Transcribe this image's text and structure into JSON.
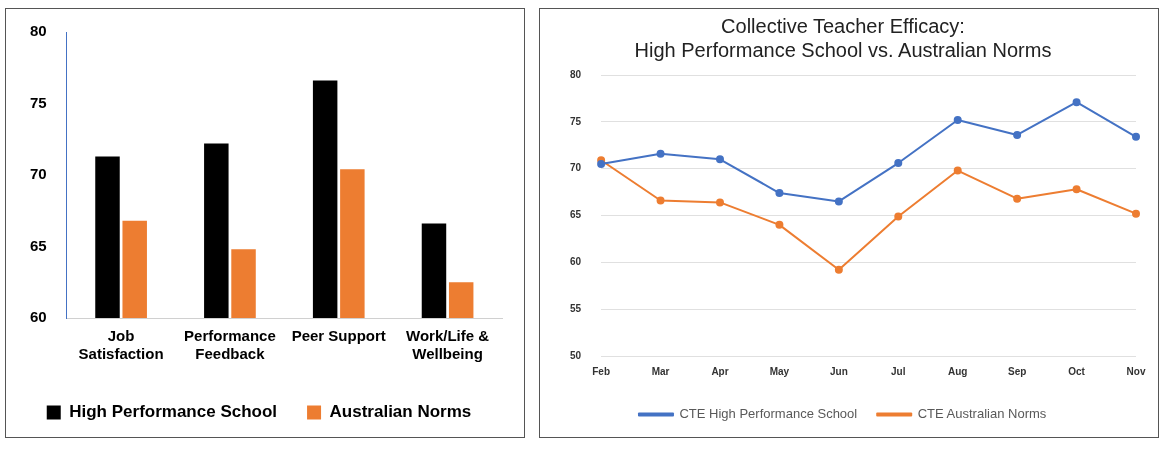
{
  "chart_data": [
    {
      "type": "bar",
      "categories": [
        "Job Satisfaction",
        "Performance Feedback",
        "Peer Support",
        "Work/Life & Wellbeing"
      ],
      "series": [
        {
          "name": "High Performance School",
          "color": "#000000",
          "values": [
            71.3,
            72.2,
            76.6,
            66.6
          ]
        },
        {
          "name": "Australian Norms",
          "color": "#ed7d31",
          "values": [
            66.8,
            64.8,
            70.4,
            62.5
          ]
        }
      ],
      "ylim": [
        60,
        80
      ],
      "yticks": [
        60,
        65,
        70,
        75,
        80
      ],
      "grid": false,
      "legend": "bottom"
    },
    {
      "type": "line",
      "title": "Collective Teacher Efficacy:\nHigh Performance School vs. Australian Norms",
      "categories": [
        "Feb",
        "Mar",
        "Apr",
        "May",
        "Jun",
        "Jul",
        "Aug",
        "Sep",
        "Oct",
        "Nov"
      ],
      "series": [
        {
          "name": "CTE High Performance School",
          "color": "#4472c4",
          "values": [
            70.5,
            71.6,
            71.0,
            67.4,
            66.5,
            70.6,
            75.2,
            73.6,
            77.1,
            73.4
          ]
        },
        {
          "name": "CTE Australian Norms",
          "color": "#ed7d31",
          "values": [
            70.9,
            66.6,
            66.4,
            64.0,
            59.2,
            64.9,
            69.8,
            66.8,
            67.8,
            65.2
          ]
        }
      ],
      "ylim": [
        50,
        80
      ],
      "yticks": [
        50,
        55,
        60,
        65,
        70,
        75,
        80
      ],
      "grid": "y",
      "legend": "bottom",
      "marker": "circle",
      "line_style": "solid"
    }
  ]
}
